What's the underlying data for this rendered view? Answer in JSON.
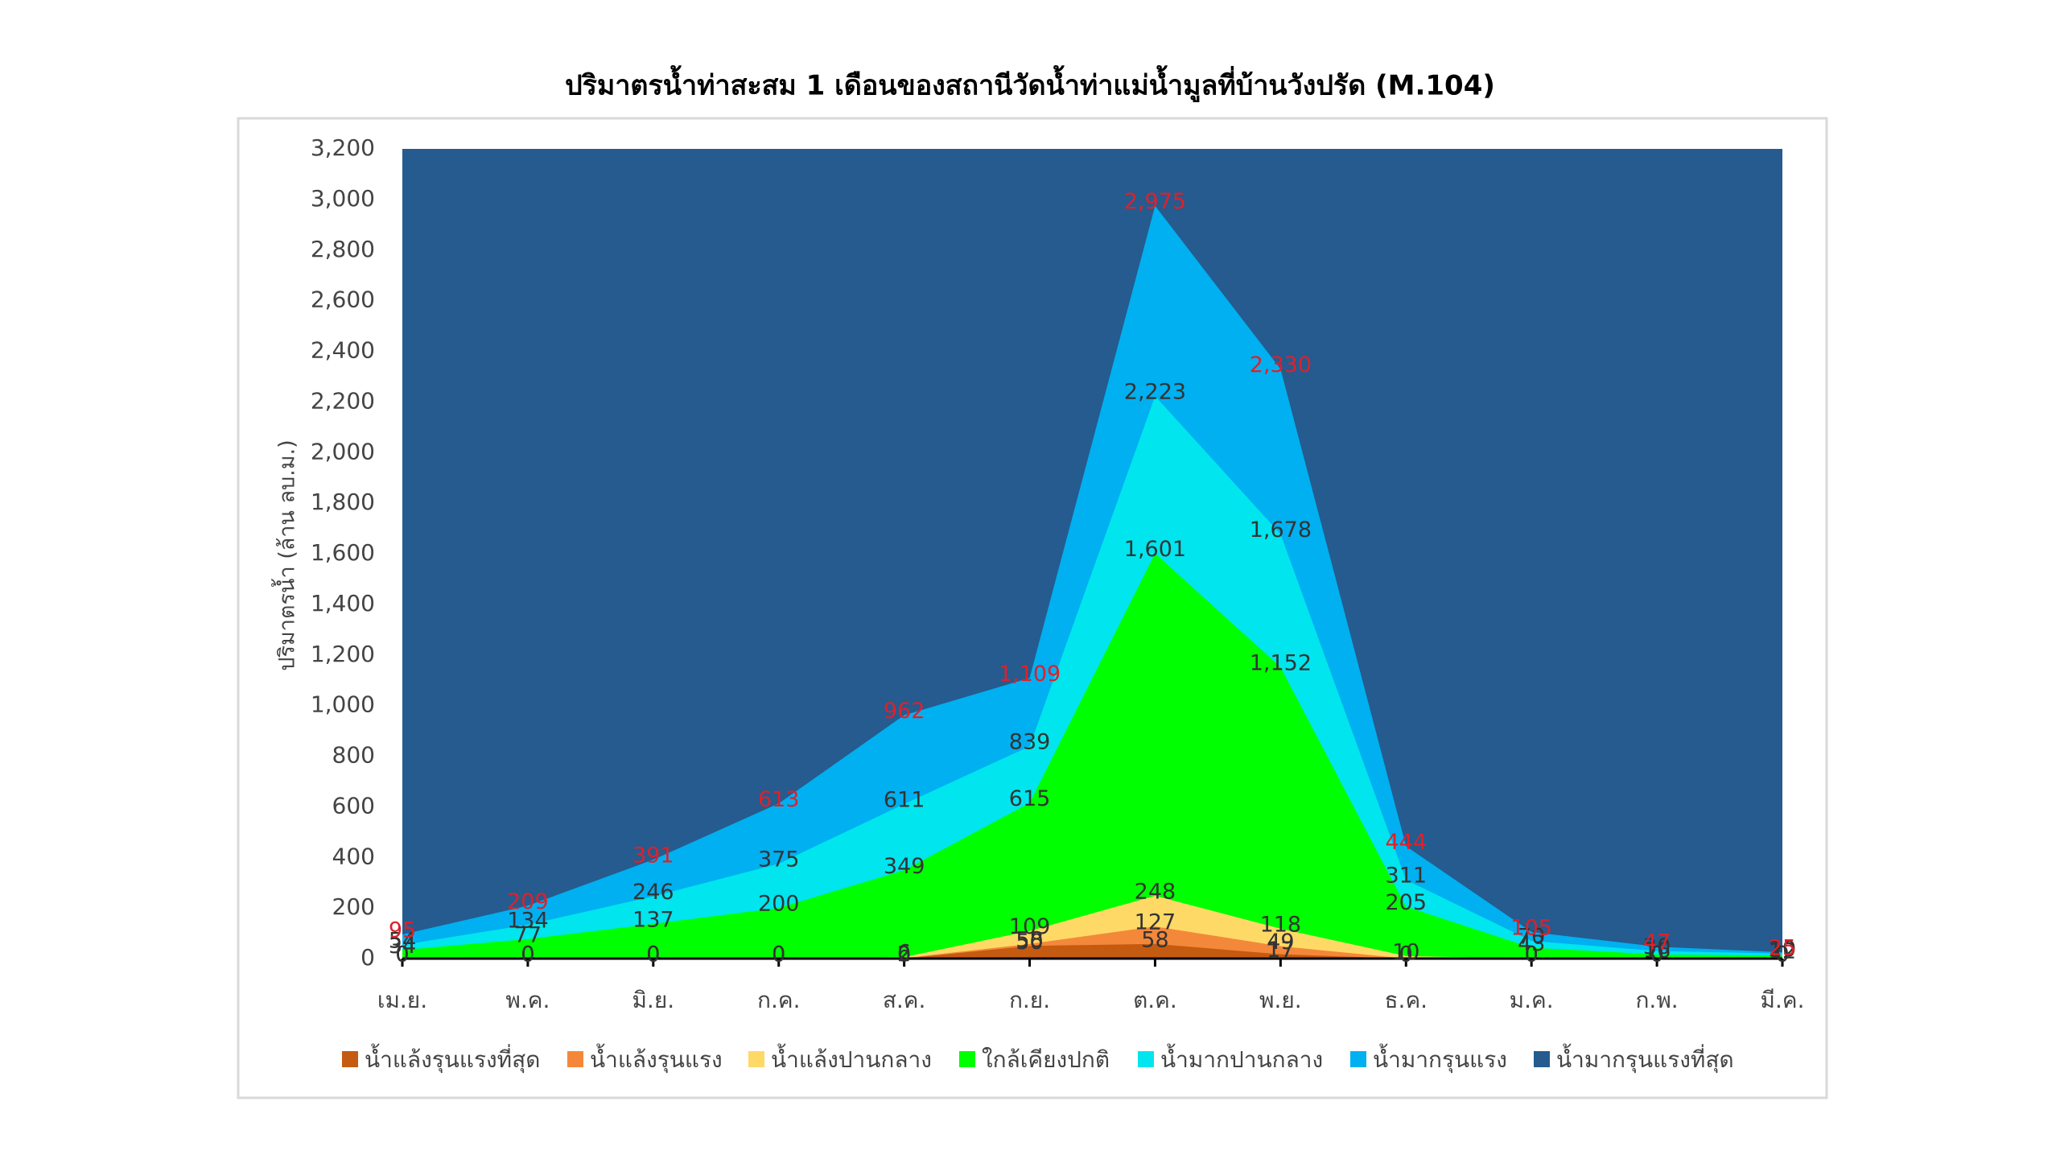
{
  "chart_data": {
    "type": "area",
    "title": "ปริมาตรน้ำท่าสะสม 1 เดือนของสถานีวัดน้ำท่าแม่น้ำมูลที่บ้านวังปรัด (M.104)",
    "y_label": "ปริมาตรน้ำ (ล้าน ลบ.ม.)",
    "categories": [
      "เม.ย.",
      "พ.ค.",
      "มิ.ย.",
      "ก.ค.",
      "ส.ค.",
      "ก.ย.",
      "ต.ค.",
      "พ.ย.",
      "ธ.ค.",
      "ม.ค.",
      "ก.พ.",
      "มี.ค."
    ],
    "ylim": [
      0,
      3200
    ],
    "yticks": [
      0,
      200,
      400,
      600,
      800,
      {
        "value": 1000,
        "label": "1,000"
      },
      {
        "value": 1200,
        "label": "1,200"
      },
      {
        "value": 1400,
        "label": "1,400"
      },
      {
        "value": 1600,
        "label": "1,600"
      },
      {
        "value": 1800,
        "label": "1,800"
      },
      {
        "value": 2000,
        "label": "2,000"
      },
      {
        "value": 2200,
        "label": "2,200"
      },
      {
        "value": 2400,
        "label": "2,400"
      },
      {
        "value": 2600,
        "label": "2,600"
      },
      {
        "value": 2800,
        "label": "2,800"
      },
      {
        "value": 3000,
        "label": "3,000"
      },
      {
        "value": 3200,
        "label": "3,200"
      }
    ],
    "series": [
      {
        "name": "น้ำแล้งรุนแรงที่สุด",
        "color": "#c55a11",
        "label_color": "#333333",
        "values": [
          0,
          0,
          0,
          0,
          0,
          50,
          58,
          17,
          0,
          0,
          0,
          0
        ]
      },
      {
        "name": "น้ำแล้งรุนแรง",
        "color": "#f4883a",
        "label_color": "#333333",
        "values": [
          0,
          0,
          0,
          0,
          2,
          58,
          127,
          49,
          0,
          0,
          0,
          0
        ]
      },
      {
        "name": "น้ำแล้งปานกลาง",
        "color": "#ffd966",
        "label_color": "#333333",
        "values": [
          0,
          0,
          0,
          0,
          6,
          109,
          248,
          118,
          10,
          0,
          0,
          0
        ]
      },
      {
        "name": "ใกล้เคียงปกติ",
        "color": "#00ff00",
        "label_color": "#333333",
        "values": [
          34,
          77,
          137,
          200,
          349,
          615,
          1601,
          1152,
          205,
          43,
          16,
          12
        ],
        "value_labels": [
          "34",
          "77",
          "137",
          "200",
          "349",
          "615",
          "1,601",
          "1,152",
          "205",
          "43",
          "16",
          "12"
        ]
      },
      {
        "name": "น้ำมากปานกลาง",
        "color": "#00e5ee",
        "label_color": "#333333",
        "values": [
          54,
          134,
          246,
          375,
          611,
          839,
          2223,
          1678,
          311,
          70,
          30,
          20
        ],
        "value_labels": [
          "54",
          "134",
          "246",
          "375",
          "611",
          "839",
          "2,223",
          "1,678",
          "311",
          "70",
          "30",
          "20"
        ]
      },
      {
        "name": "น้ำมากรุนแรง",
        "color": "#00b0f0",
        "label_color": "#e0202a",
        "values": [
          95,
          209,
          391,
          613,
          962,
          1109,
          2975,
          2330,
          444,
          105,
          47,
          25
        ],
        "value_labels": [
          "95",
          "209",
          "391",
          "613",
          "962",
          "1,109",
          "2,975",
          "2,330",
          "444",
          "105",
          "47",
          "25"
        ]
      },
      {
        "name": "น้ำมากรุนแรงที่สุด",
        "color": "#255b8e",
        "values": [
          3200,
          3200,
          3200,
          3200,
          3200,
          3200,
          3200,
          3200,
          3200,
          3200,
          3200,
          3200
        ]
      }
    ]
  }
}
